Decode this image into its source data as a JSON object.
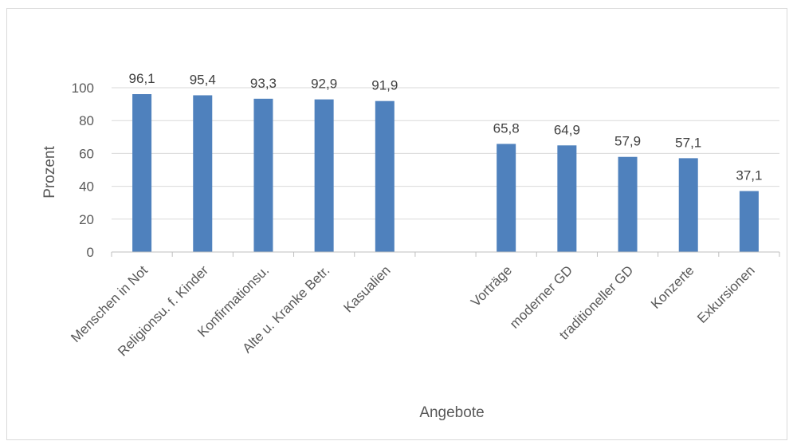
{
  "chart_data": {
    "type": "bar",
    "categories": [
      "Menschen in Not",
      "Religionsu. f. Kinder",
      "Konfirmationsu.",
      "Alte u. Kranke Betr.",
      "Kasualien",
      "",
      "Vorträge",
      "moderner GD",
      "traditioneller GD",
      "Konzerte",
      "Exkursionen"
    ],
    "values": [
      96.1,
      95.4,
      93.3,
      92.9,
      91.9,
      null,
      65.8,
      64.9,
      57.9,
      57.1,
      37.1
    ],
    "data_labels": [
      "96,1",
      "95,4",
      "93,3",
      "92,9",
      "91,9",
      "",
      "65,8",
      "64,9",
      "57,9",
      "57,1",
      "37,1"
    ],
    "title": "",
    "xlabel": "Angebote",
    "ylabel": "Prozent",
    "ylim": [
      0,
      100
    ],
    "yticks": [
      0,
      20,
      40,
      60,
      80,
      100
    ],
    "grid": true,
    "legend": "none",
    "bar_color": "#4f81bd",
    "grid_color": "#d9d9d9"
  }
}
